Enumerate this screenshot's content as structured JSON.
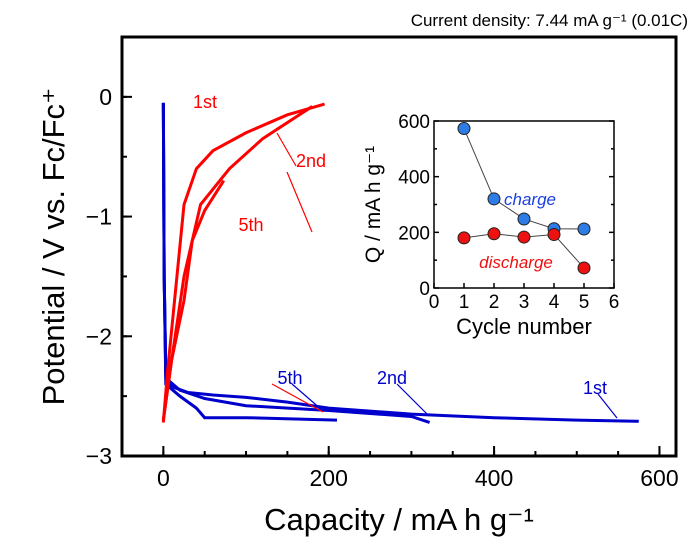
{
  "chart_data": [
    {
      "type": "line",
      "annotation": "Current density: 7.44 mA g⁻¹ (0.01C)",
      "xlabel": "Capacity / mA h g⁻¹",
      "ylabel": "Potential / V vs. Fc/Fc⁺",
      "xlim": [
        -50,
        620
      ],
      "ylim": [
        -3,
        0.5
      ],
      "xticks": [
        0,
        200,
        400,
        600
      ],
      "yticks": [
        0,
        -1,
        -2,
        -3
      ],
      "grid": false,
      "colors": {
        "charge": "#ff0000",
        "discharge": "#0000cc"
      },
      "series": [
        {
          "name": "1st",
          "kind": "discharge",
          "points": [
            [
              0,
              -0.05
            ],
            [
              1,
              -1.5
            ],
            [
              3,
              -2.3
            ],
            [
              10,
              -2.42
            ],
            [
              30,
              -2.47
            ],
            [
              60,
              -2.49
            ],
            [
              100,
              -2.51
            ],
            [
              150,
              -2.55
            ],
            [
              200,
              -2.6
            ],
            [
              300,
              -2.65
            ],
            [
              400,
              -2.68
            ],
            [
              500,
              -2.7
            ],
            [
              575,
              -2.71
            ]
          ]
        },
        {
          "name": "2nd",
          "kind": "discharge",
          "points": [
            [
              0,
              -0.05
            ],
            [
              1,
              -1.5
            ],
            [
              3,
              -2.35
            ],
            [
              20,
              -2.45
            ],
            [
              50,
              -2.52
            ],
            [
              100,
              -2.58
            ],
            [
              200,
              -2.62
            ],
            [
              300,
              -2.67
            ],
            [
              322,
              -2.72
            ]
          ]
        },
        {
          "name": "5th",
          "kind": "discharge",
          "points": [
            [
              0,
              -0.05
            ],
            [
              1,
              -1.5
            ],
            [
              3,
              -2.4
            ],
            [
              20,
              -2.5
            ],
            [
              40,
              -2.6
            ],
            [
              50,
              -2.68
            ],
            [
              100,
              -2.68
            ],
            [
              210,
              -2.7
            ]
          ]
        },
        {
          "name": "1st",
          "kind": "charge",
          "points": [
            [
              0,
              -2.72
            ],
            [
              5,
              -2.3
            ],
            [
              15,
              -1.6
            ],
            [
              25,
              -0.9
            ],
            [
              40,
              -0.6
            ],
            [
              60,
              -0.45
            ],
            [
              100,
              -0.3
            ],
            [
              150,
              -0.15
            ],
            [
              195,
              -0.06
            ]
          ]
        },
        {
          "name": "2nd",
          "kind": "charge",
          "points": [
            [
              0,
              -2.7
            ],
            [
              10,
              -2.2
            ],
            [
              25,
              -1.5
            ],
            [
              45,
              -0.9
            ],
            [
              80,
              -0.6
            ],
            [
              120,
              -0.35
            ],
            [
              180,
              -0.08
            ]
          ]
        },
        {
          "name": "5th",
          "kind": "charge",
          "points": [
            [
              0,
              -2.7
            ],
            [
              10,
              -2.2
            ],
            [
              25,
              -1.7
            ],
            [
              35,
              -1.2
            ],
            [
              50,
              -0.95
            ],
            [
              73,
              -0.7
            ]
          ]
        }
      ]
    },
    {
      "type": "line",
      "xlabel": "Cycle number",
      "ylabel": "Q / mA h g⁻¹",
      "xlim": [
        0,
        6
      ],
      "ylim": [
        0,
        600
      ],
      "xticks": [
        0,
        1,
        2,
        3,
        4,
        5,
        6
      ],
      "yticks": [
        0,
        200,
        400,
        600
      ],
      "grid": false,
      "series": [
        {
          "name": "charge",
          "color": "#2e7ce6",
          "x": [
            1,
            2,
            3,
            4,
            5
          ],
          "y": [
            573,
            320,
            248,
            213,
            212
          ]
        },
        {
          "name": "discharge",
          "color": "#ee1111",
          "x": [
            1,
            2,
            3,
            4,
            5
          ],
          "y": [
            180,
            195,
            183,
            192,
            72
          ]
        }
      ]
    }
  ]
}
